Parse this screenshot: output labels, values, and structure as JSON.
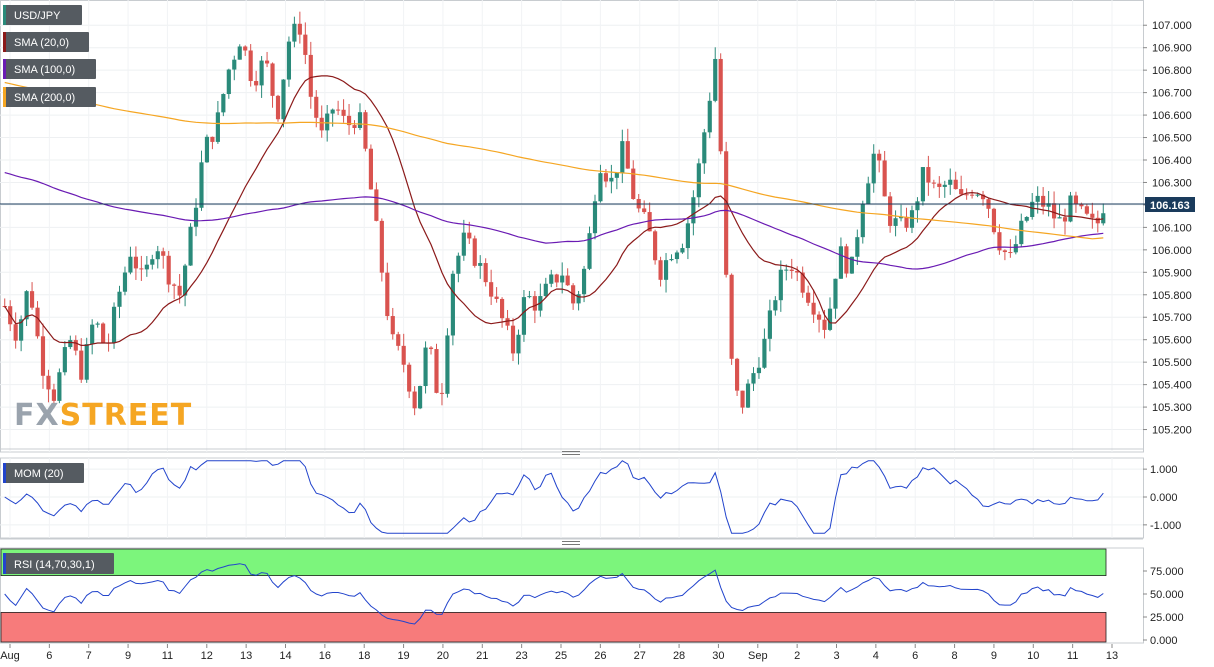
{
  "chart_data": [
    {
      "type": "candlestick",
      "symbol": "USD/JPY",
      "indicators": [
        "SMA (20,0)",
        "SMA (100,0)",
        "SMA (200,0)"
      ],
      "indicator_colors": [
        "#8b1a1a",
        "#6a1bb3",
        "#f5a623"
      ],
      "last_price": "106.163",
      "ylim": [
        105.1,
        107.05
      ],
      "y_ticks": [
        "107.000",
        "106.900",
        "106.800",
        "106.700",
        "106.600",
        "106.500",
        "106.400",
        "106.300",
        "106.200",
        "106.100",
        "106.000",
        "105.900",
        "105.800",
        "105.700",
        "105.600",
        "105.500",
        "105.400",
        "105.300",
        "105.200"
      ],
      "x_ticks": [
        "Aug",
        "6",
        "7",
        "9",
        "11",
        "12",
        "13",
        "14",
        "16",
        "18",
        "19",
        "20",
        "21",
        "23",
        "25",
        "26",
        "27",
        "28",
        "30",
        "Sep",
        "2",
        "3",
        "4",
        "6",
        "8",
        "9",
        "10",
        "11",
        "13"
      ],
      "grid": true,
      "colors": {
        "up": "#2a8a7a",
        "down": "#d9534f",
        "price_line": "#1a3b5c"
      },
      "close_path": [
        [
          0,
          105.75
        ],
        [
          6,
          105.62
        ],
        [
          12,
          105.85
        ],
        [
          18,
          105.5
        ],
        [
          24,
          105.35
        ],
        [
          32,
          105.6
        ],
        [
          38,
          105.45
        ],
        [
          44,
          105.7
        ],
        [
          50,
          105.55
        ],
        [
          56,
          105.8
        ],
        [
          62,
          106.0
        ],
        [
          68,
          105.85
        ],
        [
          74,
          106.05
        ],
        [
          80,
          105.9
        ],
        [
          86,
          105.8
        ],
        [
          92,
          106.1
        ],
        [
          98,
          106.45
        ],
        [
          104,
          106.55
        ],
        [
          110,
          106.8
        ],
        [
          116,
          106.95
        ],
        [
          122,
          106.75
        ],
        [
          128,
          106.85
        ],
        [
          134,
          106.6
        ],
        [
          140,
          106.95
        ],
        [
          146,
          107.0
        ],
        [
          150,
          106.7
        ],
        [
          156,
          106.5
        ],
        [
          162,
          106.65
        ],
        [
          168,
          106.55
        ],
        [
          174,
          106.6
        ],
        [
          178,
          106.4
        ],
        [
          184,
          106.0
        ],
        [
          190,
          105.6
        ],
        [
          196,
          105.5
        ],
        [
          202,
          105.3
        ],
        [
          208,
          105.6
        ],
        [
          214,
          105.3
        ],
        [
          220,
          105.9
        ],
        [
          226,
          106.05
        ],
        [
          232,
          105.95
        ],
        [
          238,
          105.85
        ],
        [
          244,
          105.7
        ],
        [
          250,
          105.55
        ],
        [
          256,
          105.8
        ],
        [
          262,
          105.75
        ],
        [
          268,
          105.85
        ],
        [
          274,
          105.9
        ],
        [
          280,
          105.75
        ],
        [
          286,
          105.95
        ],
        [
          292,
          106.4
        ],
        [
          298,
          106.3
        ],
        [
          304,
          106.45
        ],
        [
          310,
          106.2
        ],
        [
          316,
          106.1
        ],
        [
          322,
          105.9
        ],
        [
          328,
          106.0
        ],
        [
          334,
          106.05
        ],
        [
          340,
          106.3
        ],
        [
          346,
          106.65
        ],
        [
          350,
          106.9
        ],
        [
          354,
          105.95
        ],
        [
          358,
          105.4
        ],
        [
          362,
          105.3
        ],
        [
          368,
          105.45
        ],
        [
          374,
          105.6
        ],
        [
          380,
          105.85
        ],
        [
          386,
          105.95
        ],
        [
          392,
          105.85
        ],
        [
          398,
          105.75
        ],
        [
          404,
          105.65
        ],
        [
          410,
          106.0
        ],
        [
          416,
          105.9
        ],
        [
          422,
          106.25
        ],
        [
          428,
          106.45
        ],
        [
          434,
          106.15
        ],
        [
          440,
          106.1
        ],
        [
          446,
          106.15
        ],
        [
          452,
          106.35
        ],
        [
          458,
          106.25
        ],
        [
          464,
          106.3
        ],
        [
          470,
          106.22
        ],
        [
          476,
          106.28
        ],
        [
          482,
          106.25
        ],
        [
          488,
          106.05
        ],
        [
          494,
          105.95
        ],
        [
          500,
          106.1
        ],
        [
          506,
          106.22
        ],
        [
          512,
          106.2
        ],
        [
          518,
          106.12
        ],
        [
          524,
          106.2
        ],
        [
          530,
          106.15
        ],
        [
          536,
          106.1
        ],
        [
          540,
          106.163
        ]
      ]
    },
    {
      "type": "line",
      "name": "MOM (20)",
      "y_ticks": [
        "1.000",
        "0.000",
        "-1.000"
      ],
      "ylim": [
        -1.4,
        1.4
      ],
      "color": "#2244cc"
    },
    {
      "type": "line",
      "name": "RSI (14,70,30,1)",
      "y_ticks": [
        "75.000",
        "50.000",
        "25.000",
        "0.000"
      ],
      "ylim": [
        0,
        100
      ],
      "upper": 70,
      "lower": 30,
      "color": "#2244cc",
      "upper_color": "#7cf57c",
      "lower_color": "#f77b7b"
    }
  ],
  "watermark": {
    "part1": "FX",
    "part2": "STREET"
  }
}
